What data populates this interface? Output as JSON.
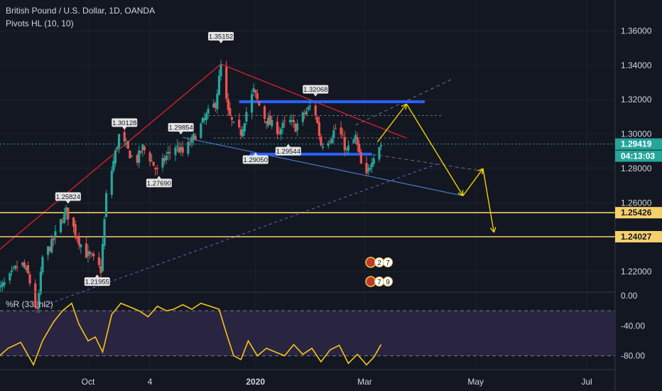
{
  "header": {
    "symbol_title": "British Pound / U.S. Dollar, 1D, OANDA",
    "indicator": "Pivots HL (10, 10)",
    "oscillator": "%R (33, hl2)"
  },
  "colors": {
    "background": "#131722",
    "up_candle": "#26a69a",
    "down_candle": "#ef5350",
    "resistance": "#2962ff",
    "trendline_red": "#d0202a",
    "level_yellow": "#f5d06a",
    "projection": "#f0d000",
    "wpr_line": "#f5c518",
    "wpr_band": "#2e2745"
  },
  "chart_data": [
    {
      "type": "line",
      "title": "British Pound / U.S. Dollar, 1D, OANDA",
      "ylim": [
        1.2,
        1.365
      ],
      "y_ticks": [
        "1.36000",
        "1.34000",
        "1.32000",
        "1.30000",
        "1.28000",
        "1.26000",
        "1.22000"
      ],
      "x_ticks": [
        "Oct",
        "4",
        "2020",
        "Mar",
        "May",
        "Jul"
      ],
      "x_tick_dates": [
        "2019-10-01",
        "2019-11-04",
        "2020-01-01",
        "2020-03-01",
        "2020-05-01",
        "2020-07-01"
      ],
      "x_range": [
        "2019-08-11",
        "2020-07-31"
      ],
      "price_series": [
        [
          "2019-08-11",
          1.207
        ],
        [
          "2019-08-18",
          1.215
        ],
        [
          "2019-08-25",
          1.226
        ],
        [
          "2019-08-29",
          1.218
        ],
        [
          "2019-09-03",
          1.196
        ],
        [
          "2019-09-06",
          1.228
        ],
        [
          "2019-09-11",
          1.236
        ],
        [
          "2019-09-16",
          1.249
        ],
        [
          "2019-09-19",
          1.255
        ],
        [
          "2019-09-24",
          1.243
        ],
        [
          "2019-09-29",
          1.231
        ],
        [
          "2019-10-03",
          1.228
        ],
        [
          "2019-10-08",
          1.221
        ],
        [
          "2019-10-11",
          1.264
        ],
        [
          "2019-10-15",
          1.284
        ],
        [
          "2019-10-18",
          1.299
        ],
        [
          "2019-10-22",
          1.292
        ],
        [
          "2019-10-27",
          1.283
        ],
        [
          "2019-10-31",
          1.292
        ],
        [
          "2019-11-04",
          1.286
        ],
        [
          "2019-11-08",
          1.278
        ],
        [
          "2019-11-13",
          1.287
        ],
        [
          "2019-11-18",
          1.293
        ],
        [
          "2019-11-22",
          1.289
        ],
        [
          "2019-11-27",
          1.296
        ],
        [
          "2019-12-02",
          1.305
        ],
        [
          "2019-12-06",
          1.312
        ],
        [
          "2019-12-10",
          1.318
        ],
        [
          "2019-12-13",
          1.339
        ],
        [
          "2019-12-17",
          1.312
        ],
        [
          "2019-12-21",
          1.302
        ],
        [
          "2019-12-24",
          1.301
        ],
        [
          "2019-12-27",
          1.313
        ],
        [
          "2019-12-31",
          1.325
        ],
        [
          "2020-01-05",
          1.311
        ],
        [
          "2020-01-09",
          1.306
        ],
        [
          "2020-01-14",
          1.302
        ],
        [
          "2020-01-19",
          1.308
        ],
        [
          "2020-01-23",
          1.304
        ],
        [
          "2020-01-28",
          1.312
        ],
        [
          "2020-02-02",
          1.318
        ],
        [
          "2020-02-06",
          1.294
        ],
        [
          "2020-02-11",
          1.298
        ],
        [
          "2020-02-15",
          1.305
        ],
        [
          "2020-02-20",
          1.29
        ],
        [
          "2020-02-25",
          1.298
        ],
        [
          "2020-02-28",
          1.282
        ],
        [
          "2020-03-02",
          1.275
        ],
        [
          "2020-03-05",
          1.286
        ],
        [
          "2020-03-08",
          1.293
        ],
        [
          "2020-03-10",
          1.294
        ]
      ],
      "pivots": [
        {
          "label": "1.35152",
          "date": "2019-12-13",
          "value": 1.35152,
          "kind": "high"
        },
        {
          "label": "1.32068",
          "date": "2020-02-03",
          "value": 1.32068,
          "kind": "high"
        },
        {
          "label": "1.30128",
          "date": "2019-10-21",
          "value": 1.30128,
          "kind": "high"
        },
        {
          "label": "1.29854",
          "date": "2019-11-21",
          "value": 1.29854,
          "kind": "high"
        },
        {
          "label": "1.25824",
          "date": "2019-09-20",
          "value": 1.25824,
          "kind": "high"
        },
        {
          "label": "1.27690",
          "date": "2019-11-09",
          "value": 1.2769,
          "kind": "low"
        },
        {
          "label": "1.29050",
          "date": "2020-01-01",
          "value": 1.2905,
          "kind": "low"
        },
        {
          "label": "1.29544",
          "date": "2020-01-19",
          "value": 1.29544,
          "kind": "low"
        },
        {
          "label": "1.21955",
          "date": "2019-10-06",
          "value": 1.21955,
          "kind": "low"
        }
      ],
      "price_labels": [
        {
          "text": "1.29419",
          "value": 1.29419,
          "style": "current"
        },
        {
          "text": "04:13:03",
          "value": 1.28719,
          "style": "countdown"
        },
        {
          "text": "1.25426",
          "value": 1.25426,
          "style": "level"
        },
        {
          "text": "1.24027",
          "value": 1.24027,
          "style": "level"
        }
      ],
      "horizontal_levels": [
        1.25426,
        1.24027
      ],
      "current_price": 1.29419,
      "resistance_zone": {
        "from": "2019-12-23",
        "to": "2020-04-03",
        "value": 1.3188
      },
      "support_zone": {
        "from": "2019-12-29",
        "to": "2020-03-05",
        "value": 1.2883
      },
      "trendlines": [
        {
          "kind": "red",
          "points": [
            [
              "2019-08-11",
              1.2307
            ],
            [
              "2019-12-13",
              1.3407
            ],
            [
              "2020-03-24",
              1.2976
            ]
          ]
        },
        {
          "kind": "blue",
          "points": [
            [
              "2019-11-22",
              1.2981
            ],
            [
              "2020-04-24",
              1.2641
            ]
          ]
        },
        {
          "kind": "purple-dashed",
          "points": [
            [
              "2019-09-07",
              1.2003
            ],
            [
              "2020-04-12",
              1.2834
            ]
          ]
        },
        {
          "kind": "grey-dashed",
          "points": [
            [
              "2020-02-25",
              1.3052
            ],
            [
              "2020-04-19",
              1.3325
            ]
          ]
        },
        {
          "kind": "grey-dashed",
          "points": [
            [
              "2020-03-02",
              1.2887
            ],
            [
              "2020-05-04",
              1.2787
            ]
          ]
        },
        {
          "kind": "grey-dotted",
          "points": [
            [
              "2019-12-04",
              1.3108
            ],
            [
              "2020-04-13",
              1.3108
            ]
          ]
        },
        {
          "kind": "grey-dotted",
          "points": [
            [
              "2019-12-09",
              1.2977
            ],
            [
              "2020-03-20",
              1.2977
            ]
          ]
        }
      ],
      "projection_path": [
        [
          "2020-03-08",
          1.2954
        ],
        [
          "2020-03-24",
          1.3175
        ],
        [
          "2020-04-24",
          1.2641
        ],
        [
          "2020-05-05",
          1.2799
        ],
        [
          "2020-05-11",
          1.2428
        ]
      ]
    },
    {
      "type": "line",
      "title": "%R (33, hl2)",
      "ylim": [
        -100,
        0
      ],
      "y_ticks": [
        "0.00",
        "-40.00",
        "-80.00"
      ],
      "band": [
        -20,
        -80
      ],
      "values": [
        [
          "2019-08-11",
          -85
        ],
        [
          "2019-08-18",
          -70
        ],
        [
          "2019-08-25",
          -62
        ],
        [
          "2019-09-01",
          -92
        ],
        [
          "2019-09-06",
          -60
        ],
        [
          "2019-09-12",
          -35
        ],
        [
          "2019-09-17",
          -20
        ],
        [
          "2019-09-22",
          -10
        ],
        [
          "2019-09-26",
          -38
        ],
        [
          "2019-10-01",
          -60
        ],
        [
          "2019-10-05",
          -55
        ],
        [
          "2019-10-09",
          -75
        ],
        [
          "2019-10-14",
          -25
        ],
        [
          "2019-10-19",
          -10
        ],
        [
          "2019-10-24",
          -15
        ],
        [
          "2019-10-29",
          -20
        ],
        [
          "2019-11-03",
          -28
        ],
        [
          "2019-11-08",
          -14
        ],
        [
          "2019-11-13",
          -20
        ],
        [
          "2019-11-17",
          -18
        ],
        [
          "2019-11-22",
          -12
        ],
        [
          "2019-11-27",
          -18
        ],
        [
          "2019-12-02",
          -10
        ],
        [
          "2019-12-07",
          -14
        ],
        [
          "2019-12-12",
          -18
        ],
        [
          "2019-12-16",
          -50
        ],
        [
          "2019-12-20",
          -80
        ],
        [
          "2019-12-24",
          -85
        ],
        [
          "2019-12-28",
          -60
        ],
        [
          "2020-01-02",
          -80
        ],
        [
          "2020-01-07",
          -70
        ],
        [
          "2020-01-12",
          -75
        ],
        [
          "2020-01-17",
          -80
        ],
        [
          "2020-01-22",
          -65
        ],
        [
          "2020-01-27",
          -78
        ],
        [
          "2020-02-01",
          -70
        ],
        [
          "2020-02-06",
          -88
        ],
        [
          "2020-02-11",
          -72
        ],
        [
          "2020-02-16",
          -66
        ],
        [
          "2020-02-21",
          -90
        ],
        [
          "2020-02-26",
          -78
        ],
        [
          "2020-03-02",
          -92
        ],
        [
          "2020-03-06",
          -82
        ],
        [
          "2020-03-10",
          -65
        ]
      ]
    }
  ],
  "events": [
    {
      "count": "2",
      "count2": "7"
    },
    {
      "count": "7",
      "count2": "9"
    }
  ]
}
